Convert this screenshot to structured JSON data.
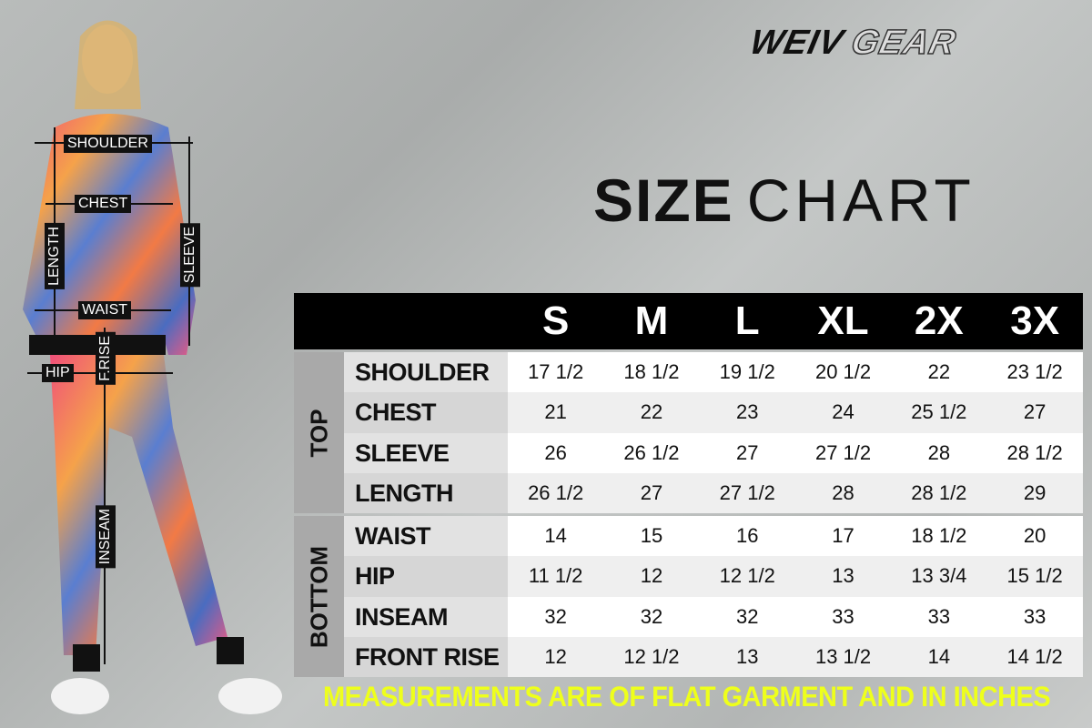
{
  "brand": {
    "part1": "WEIV",
    "part2": "GEAR"
  },
  "title": {
    "bold": "SIZE",
    "light": "CHART"
  },
  "figure_labels": {
    "shoulder": "SHOULDER",
    "chest": "CHEST",
    "length": "LENGTH",
    "sleeve": "SLEEVE",
    "waist": "WAIST",
    "front_rise": "F.RISE",
    "hip": "HIP",
    "inseam": "INSEAM"
  },
  "colors": {
    "header": "#000000",
    "note": "#eeff1c"
  },
  "chart_data": {
    "type": "table",
    "columns": [
      "S",
      "M",
      "L",
      "XL",
      "2X",
      "3X"
    ],
    "groups": [
      {
        "name": "TOP",
        "rows": [
          {
            "label": "SHOULDER",
            "values": [
              "17 1/2",
              "18 1/2",
              "19 1/2",
              "20 1/2",
              "22",
              "23 1/2"
            ]
          },
          {
            "label": "CHEST",
            "values": [
              "21",
              "22",
              "23",
              "24",
              "25 1/2",
              "27"
            ]
          },
          {
            "label": "SLEEVE",
            "values": [
              "26",
              "26 1/2",
              "27",
              "27 1/2",
              "28",
              "28 1/2"
            ]
          },
          {
            "label": "LENGTH",
            "values": [
              "26 1/2",
              "27",
              "27 1/2",
              "28",
              "28 1/2",
              "29"
            ]
          }
        ]
      },
      {
        "name": "BOTTOM",
        "rows": [
          {
            "label": "WAIST",
            "values": [
              "14",
              "15",
              "16",
              "17",
              "18 1/2",
              "20"
            ]
          },
          {
            "label": "HIP",
            "values": [
              "11 1/2",
              "12",
              "12 1/2",
              "13",
              "13 3/4",
              "15 1/2"
            ]
          },
          {
            "label": "INSEAM",
            "values": [
              "32",
              "32",
              "32",
              "33",
              "33",
              "33"
            ]
          },
          {
            "label": "FRONT RISE",
            "values": [
              "12",
              "12 1/2",
              "13",
              "13 1/2",
              "14",
              "14 1/2"
            ]
          }
        ]
      }
    ]
  },
  "note": "MEASUREMENTS ARE OF FLAT GARMENT AND IN INCHES"
}
